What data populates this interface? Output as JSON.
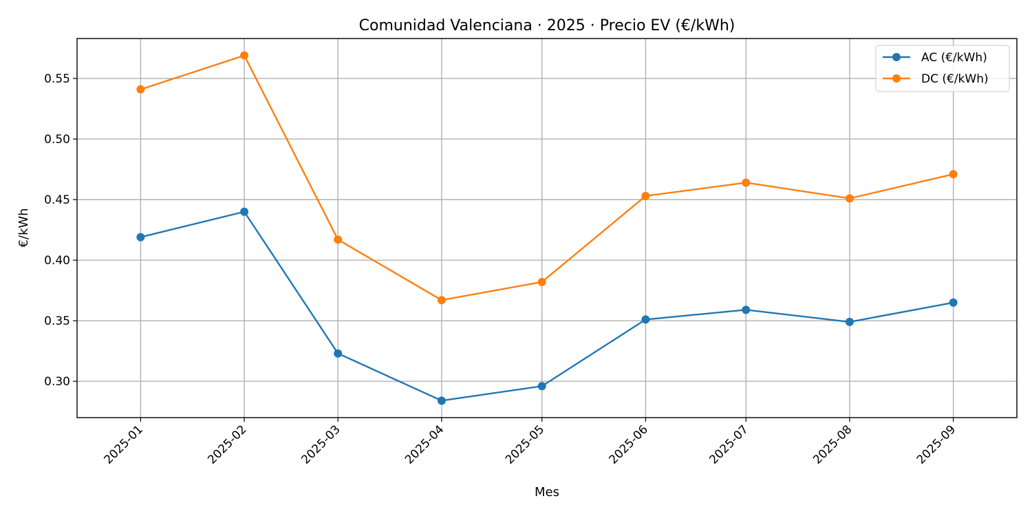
{
  "chart_data": {
    "type": "line",
    "title": "Comunidad Valenciana · 2025 · Precio EV (€/kWh)",
    "xlabel": "Mes",
    "ylabel": "€/kWh",
    "x": [
      "2025-01",
      "2025-02",
      "2025-03",
      "2025-04",
      "2025-05",
      "2025-06",
      "2025-07",
      "2025-08",
      "2025-09"
    ],
    "x_dates": [
      "2025-01-01",
      "2025-02-01",
      "2025-03-01",
      "2025-04-01",
      "2025-05-01",
      "2025-06-01",
      "2025-07-01",
      "2025-08-01",
      "2025-09-01"
    ],
    "ylim": [
      0.27,
      0.583
    ],
    "yticks": [
      "0.30",
      "0.35",
      "0.40",
      "0.45",
      "0.50",
      "0.55"
    ],
    "grid": true,
    "legend_position": "top-right",
    "series": [
      {
        "name": "AC (€/kWh)",
        "color": "#1f77b4",
        "marker": "circle",
        "values": [
          0.419,
          0.44,
          0.323,
          0.284,
          0.296,
          0.351,
          0.359,
          0.349,
          0.365
        ]
      },
      {
        "name": "DC (€/kWh)",
        "color": "#ff7f0e",
        "marker": "circle",
        "values": [
          0.541,
          0.569,
          0.417,
          0.367,
          0.382,
          0.453,
          0.464,
          0.451,
          0.471
        ]
      }
    ]
  }
}
